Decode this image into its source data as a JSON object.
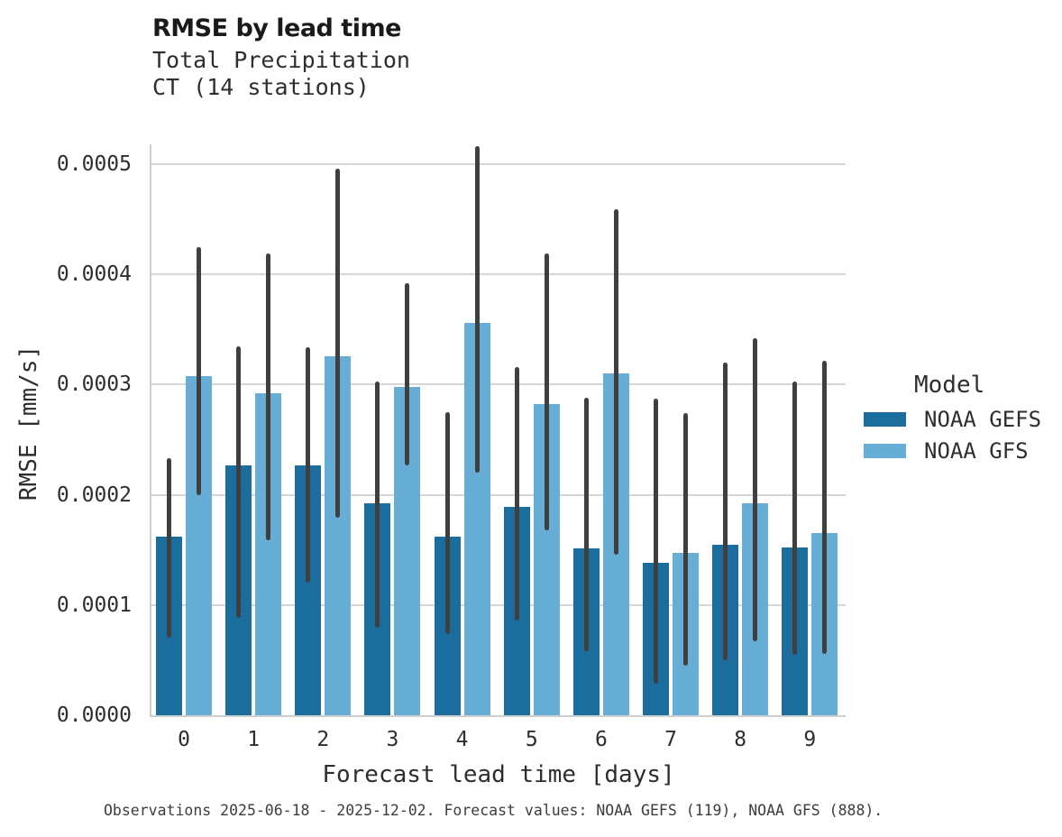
{
  "header": {
    "title": "RMSE by lead time",
    "subtitle_line1": "Total Precipitation",
    "subtitle_line2": "CT (14 stations)"
  },
  "caption": "Observations 2025-06-18 - 2025-12-02. Forecast values: NOAA GEFS (119), NOAA GFS (888).",
  "colors": {
    "gefs_blue": "#1a6d9c",
    "gfs_blue": "#66aed6",
    "errorbar": "#3f3f3f",
    "gridline": "#d6d6d6",
    "spine": "#cfcfcf",
    "text": "#2e2e2e"
  },
  "chart_data": {
    "type": "bar",
    "title": "RMSE by lead time",
    "subtitle": [
      "Total Precipitation",
      "CT (14 stations)"
    ],
    "xlabel": "Forecast lead time [days]",
    "ylabel": "RMSE [mm/s]",
    "categories": [
      "0",
      "1",
      "2",
      "3",
      "4",
      "5",
      "6",
      "7",
      "8",
      "9"
    ],
    "ytick_labels": [
      "0.0000",
      "0.0001",
      "0.0002",
      "0.0003",
      "0.0004",
      "0.0005"
    ],
    "ytick_values": [
      0,
      0.0001,
      0.0002,
      0.0003,
      0.0004,
      0.0005
    ],
    "ylim": [
      0,
      0.000518
    ],
    "grid": true,
    "legend": {
      "title": "Model",
      "position": "right"
    },
    "series": [
      {
        "name": "NOAA GEFS",
        "color": "#1a6d9c",
        "values": [
          0.000162,
          0.000227,
          0.000227,
          0.000192,
          0.000162,
          0.000189,
          0.000151,
          0.000138,
          0.000155,
          0.000152
        ],
        "err_low": [
          7e-05,
          8.8e-05,
          0.00012,
          7.9e-05,
          7.4e-05,
          8.6e-05,
          5.8e-05,
          2.9e-05,
          5e-05,
          5.5e-05
        ],
        "err_high": [
          0.000233,
          0.000335,
          0.000334,
          0.000303,
          0.000275,
          0.000316,
          0.000288,
          0.000287,
          0.00032,
          0.000303
        ]
      },
      {
        "name": "NOAA GFS",
        "color": "#66aed6",
        "values": [
          0.000308,
          0.000292,
          0.000326,
          0.000298,
          0.000356,
          0.000282,
          0.00031,
          0.000147,
          0.000192,
          0.000165
        ],
        "err_low": [
          0.0002,
          0.000159,
          0.000179,
          0.000227,
          0.00022,
          0.000168,
          0.000146,
          4.5e-05,
          6.7e-05,
          5.6e-05
        ],
        "err_high": [
          0.000425,
          0.000419,
          0.000496,
          0.000392,
          0.000516,
          0.000419,
          0.000459,
          0.000274,
          0.000342,
          0.000322
        ]
      }
    ]
  }
}
